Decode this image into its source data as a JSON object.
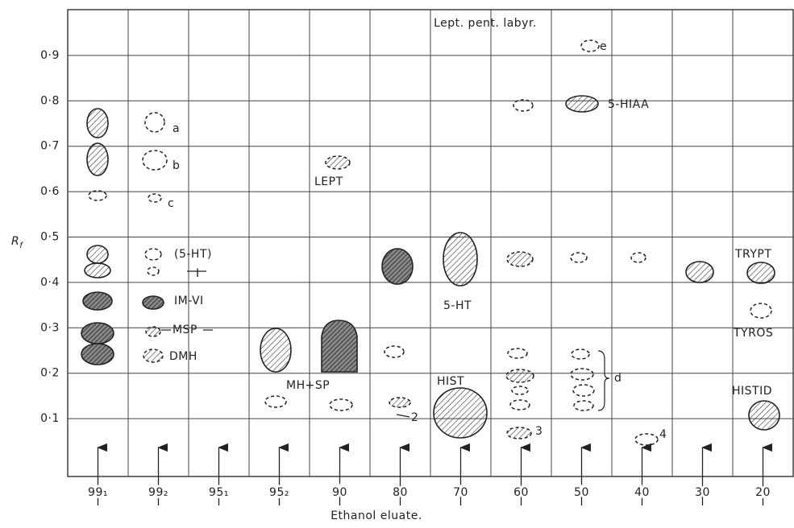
{
  "axis": {
    "y_label": "R",
    "y_label_sub": "f",
    "x_label": "Ethanol eluate.",
    "y_ticks": [
      "0·1",
      "0·2",
      "0·3",
      "0·4",
      "0·5",
      "0·6",
      "0·7",
      "0·8",
      "0·9"
    ],
    "lanes": [
      "99₁",
      "99₂",
      "95₁",
      "95₂",
      "90",
      "80",
      "70",
      "60",
      "50",
      "40",
      "30",
      "20"
    ]
  },
  "labels": {
    "species": "Lept. pent. labyr.",
    "e": "e",
    "hiaa": "5-HIAA",
    "a": "a",
    "b": "b",
    "c": "c",
    "ht_paren": "(5-HT)",
    "one": "I",
    "imvi": "IM-VI",
    "msp": "MSP",
    "dmh": "DMH",
    "lept": "LEPT",
    "mhsp": "MH+SP",
    "ht": "5-HT",
    "hist": "HIST",
    "two": "2",
    "three": "3",
    "d": "d",
    "four": "4",
    "trypt": "TRYPT",
    "tyros": "TYROS",
    "histid": "HISTID"
  }
}
